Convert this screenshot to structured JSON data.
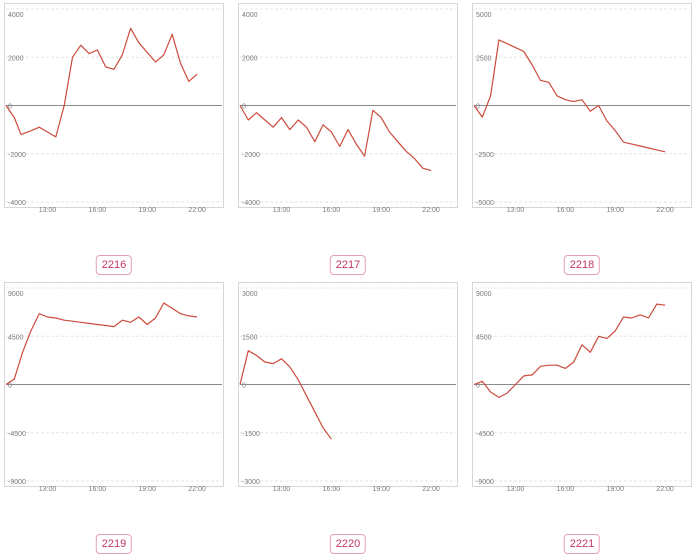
{
  "colors": {
    "line": "#cc4b3c",
    "zero": "#8a8a8a",
    "grid": "#e6e6e6",
    "tick": "#7a7a7a",
    "badge": "#c0395f"
  },
  "panels": [
    {
      "id": "2216",
      "label": "2216"
    },
    {
      "id": "2217",
      "label": "2217"
    },
    {
      "id": "2218",
      "label": "2218"
    },
    {
      "id": "2219",
      "label": "2219"
    },
    {
      "id": "2220",
      "label": "2220"
    },
    {
      "id": "2221",
      "label": "2221"
    }
  ],
  "chart_data": [
    {
      "type": "line",
      "id": "2216",
      "xlim": [
        10.5,
        23.5
      ],
      "ylim": [
        -4000,
        4000
      ],
      "yticks": [
        4000,
        2000,
        0,
        -2000,
        -4000
      ],
      "ytick_labels": [
        "4000",
        "2000",
        "0",
        "-2000",
        "-4000"
      ],
      "xticks": [
        13,
        16,
        19,
        22
      ],
      "xtick_labels": [
        "13:00",
        "16:00",
        "19:00",
        "22:00"
      ],
      "x": [
        10.5,
        11.0,
        11.4,
        12.0,
        12.5,
        13.0,
        13.5,
        14.0,
        14.5,
        15.0,
        15.5,
        16.0,
        16.5,
        17.0,
        17.5,
        18.0,
        18.5,
        19.0,
        19.5,
        20.0,
        20.5,
        21.0,
        21.5,
        22.0
      ],
      "y": [
        0,
        -500,
        -1200,
        -1050,
        -900,
        -1100,
        -1300,
        0,
        2000,
        2500,
        2150,
        2300,
        1600,
        1500,
        2100,
        3200,
        2600,
        2200,
        1800,
        2100,
        2950,
        1750,
        1000,
        1300
      ]
    },
    {
      "type": "line",
      "id": "2217",
      "xlim": [
        10.5,
        23.5
      ],
      "ylim": [
        -4000,
        4000
      ],
      "yticks": [
        4000,
        2000,
        0,
        -2000,
        -4000
      ],
      "ytick_labels": [
        "4000",
        "2000",
        "0",
        "-2000",
        "-4000"
      ],
      "xticks": [
        13,
        16,
        19,
        22
      ],
      "xtick_labels": [
        "13:00",
        "16:00",
        "19:00",
        "22:00"
      ],
      "x": [
        10.5,
        11.0,
        11.5,
        12.0,
        12.5,
        13.0,
        13.5,
        14.0,
        14.5,
        15.0,
        15.5,
        16.0,
        16.5,
        17.0,
        17.5,
        18.0,
        18.5,
        19.0,
        19.5,
        20.0,
        20.5,
        21.0,
        21.5,
        22.0
      ],
      "y": [
        0,
        -600,
        -300,
        -600,
        -900,
        -500,
        -1000,
        -600,
        -900,
        -1500,
        -800,
        -1100,
        -1700,
        -1000,
        -1600,
        -2100,
        -200,
        -500,
        -1100,
        -1500,
        -1900,
        -2200,
        -2600,
        -2700
      ]
    },
    {
      "type": "line",
      "id": "2218",
      "xlim": [
        10.5,
        23.5
      ],
      "ylim": [
        -5000,
        5000
      ],
      "yticks": [
        5000,
        2500,
        0,
        -2500,
        -5000
      ],
      "ytick_labels": [
        "5000",
        "2500",
        "0",
        "-2500",
        "-5000"
      ],
      "xticks": [
        13,
        16,
        19,
        22
      ],
      "xtick_labels": [
        "13:00",
        "16:00",
        "19:00",
        "22:00"
      ],
      "x": [
        10.5,
        11.0,
        11.5,
        12.0,
        12.5,
        13.0,
        13.5,
        14.0,
        14.5,
        15.0,
        15.5,
        16.0,
        16.5,
        17.0,
        17.5,
        18.0,
        18.5,
        19.0,
        19.5,
        20.0,
        20.5,
        21.0,
        21.5,
        22.0
      ],
      "y": [
        0,
        -600,
        500,
        3400,
        3200,
        3000,
        2800,
        2100,
        1300,
        1200,
        500,
        300,
        200,
        300,
        -300,
        0,
        -800,
        -1300,
        -1900,
        -2000,
        -2100,
        -2200,
        -2300,
        -2400
      ]
    },
    {
      "type": "line",
      "id": "2219",
      "xlim": [
        10.5,
        23.5
      ],
      "ylim": [
        -9000,
        9000
      ],
      "yticks": [
        9000,
        4500,
        0,
        -4500,
        -9000
      ],
      "ytick_labels": [
        "9000",
        "4500",
        "0",
        "-4500",
        "-9000"
      ],
      "xticks": [
        13,
        16,
        19,
        22
      ],
      "xtick_labels": [
        "13:00",
        "16:00",
        "19:00",
        "22:00"
      ],
      "x": [
        10.5,
        11.0,
        11.5,
        12.0,
        12.5,
        13.0,
        13.5,
        14.0,
        14.5,
        15.0,
        15.5,
        16.0,
        16.5,
        17.0,
        17.5,
        18.0,
        18.5,
        19.0,
        19.5,
        20.0,
        20.5,
        21.0,
        21.5,
        22.0
      ],
      "y": [
        0,
        500,
        3000,
        5000,
        6600,
        6300,
        6200,
        6000,
        5900,
        5800,
        5700,
        5600,
        5500,
        5400,
        6000,
        5800,
        6300,
        5600,
        6200,
        7600,
        7100,
        6600,
        6400,
        6300
      ]
    },
    {
      "type": "line",
      "id": "2220",
      "xlim": [
        10.5,
        23.5
      ],
      "ylim": [
        -3000,
        3000
      ],
      "yticks": [
        3000,
        1500,
        0,
        -1500,
        -3000
      ],
      "ytick_labels": [
        "3000",
        "1500",
        "0",
        "-1500",
        "-3000"
      ],
      "xticks": [
        13,
        16,
        19,
        22
      ],
      "xtick_labels": [
        "13:00",
        "16:00",
        "19:00",
        "22:00"
      ],
      "x": [
        10.5,
        11.0,
        11.5,
        12.0,
        12.5,
        13.0,
        13.5,
        14.0,
        14.5,
        15.0,
        15.5,
        16.0
      ],
      "y": [
        0,
        1050,
        900,
        700,
        650,
        800,
        550,
        150,
        -350,
        -850,
        -1350,
        -1700
      ]
    },
    {
      "type": "line",
      "id": "2221",
      "xlim": [
        10.5,
        23.5
      ],
      "ylim": [
        -9000,
        9000
      ],
      "yticks": [
        9000,
        4500,
        0,
        -4500,
        -9000
      ],
      "ytick_labels": [
        "9000",
        "4500",
        "0",
        "-4500",
        "-9000"
      ],
      "xticks": [
        13,
        16,
        19,
        22
      ],
      "xtick_labels": [
        "13:00",
        "16:00",
        "19:00",
        "22:00"
      ],
      "x": [
        10.5,
        11.0,
        11.5,
        12.0,
        12.5,
        13.0,
        13.5,
        14.0,
        14.5,
        15.0,
        15.5,
        16.0,
        16.5,
        17.0,
        17.5,
        18.0,
        18.5,
        19.0,
        19.5,
        20.0,
        20.5,
        21.0,
        21.5,
        22.0
      ],
      "y": [
        0,
        300,
        -700,
        -1200,
        -800,
        0,
        800,
        900,
        1700,
        1800,
        1800,
        1500,
        2100,
        3700,
        3000,
        4500,
        4300,
        5000,
        6300,
        6200,
        6500,
        6200,
        7500,
        7400
      ]
    }
  ]
}
